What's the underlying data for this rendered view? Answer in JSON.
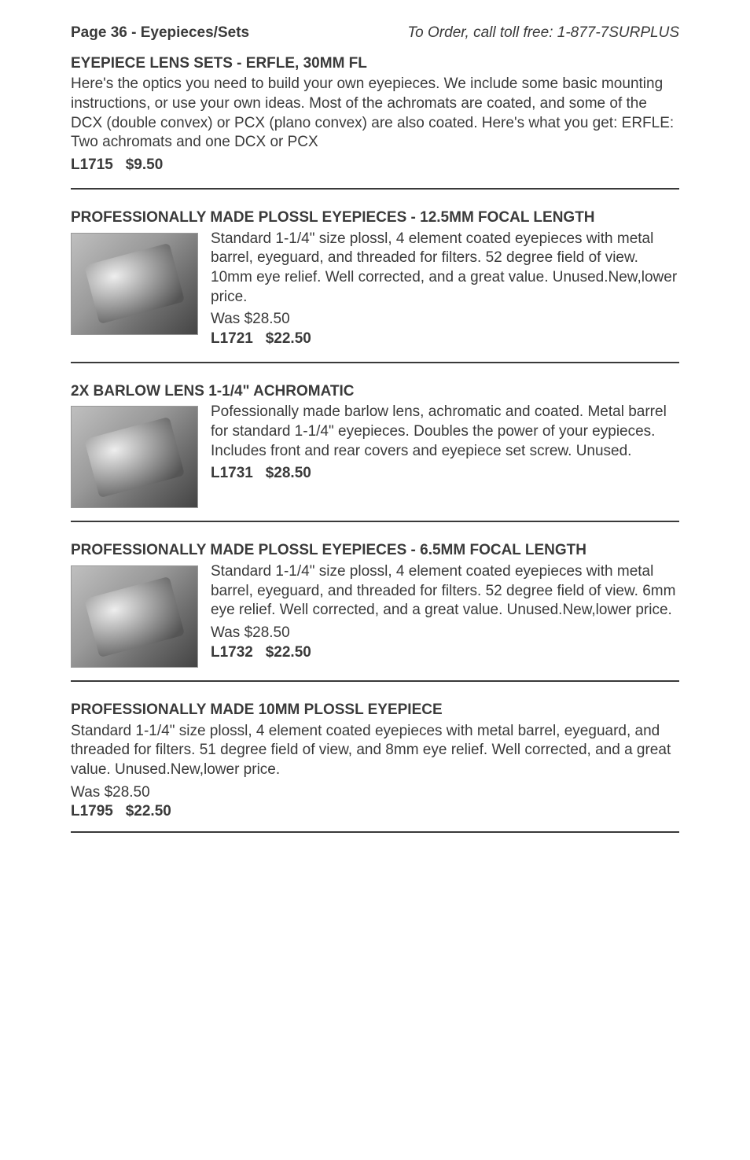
{
  "header": {
    "page_label": "Page 36 - Eyepieces/Sets",
    "order_info": "To Order, call toll free: 1-877-7SURPLUS"
  },
  "sections": [
    {
      "title": "EYEPIECE LENS SETS - ERFLE, 30MM FL",
      "body": "Here's the optics you need to build your own eyepieces. We include some basic mounting instructions, or use your own ideas. Most of the achromats are coated, and some of the DCX (double convex) or PCX (plano convex) are also coated. Here's what you get: ERFLE: Two achromats and one DCX or PCX",
      "sku": "L1715",
      "price": "$9.50",
      "has_image": false
    },
    {
      "title": "PROFESSIONALLY MADE PLOSSL EYEPIECES - 12.5MM FOCAL LENGTH",
      "body": "Standard 1-1/4\" size plossl, 4 element coated eyepieces with metal barrel, eyeguard, and threaded for filters. 52 degree field of view.  10mm eye relief.  Well corrected, and a great value. Unused.New,lower price.",
      "was": "Was $28.50",
      "sku": "L1721",
      "price": "$22.50",
      "has_image": true
    },
    {
      "title": "2X BARLOW LENS 1-1/4\" ACHROMATIC",
      "body": "Pofessionally made barlow lens, achromatic and coated. Metal barrel for standard 1-1/4\" eyepieces. Doubles the power of your eypieces. Includes front and rear covers and eyepiece set screw. Unused.",
      "sku": "L1731",
      "price": "$28.50",
      "has_image": true
    },
    {
      "title": "PROFESSIONALLY MADE PLOSSL EYEPIECES - 6.5MM FOCAL LENGTH",
      "body": "Standard 1-1/4\" size plossl, 4 element coated eyepieces with metal barrel, eyeguard, and threaded for filters. 52 degree field of view.  6mm eye relief.  Well corrected, and a great value. Unused.New,lower price.",
      "was": "Was $28.50",
      "sku": "L1732",
      "price": "$22.50",
      "has_image": true
    },
    {
      "title": "PROFESSIONALLY MADE 10MM PLOSSL EYEPIECE",
      "body": "Standard 1-1/4\" size plossl, 4 element coated eyepieces with metal barrel, eyeguard, and threaded for filters. 51 degree field of view, and 8mm eye relief.  Well corrected, and a great value. Unused.New,lower price.",
      "was": "Was $28.50",
      "sku": "L1795",
      "price": "$22.50",
      "has_image": false
    }
  ]
}
